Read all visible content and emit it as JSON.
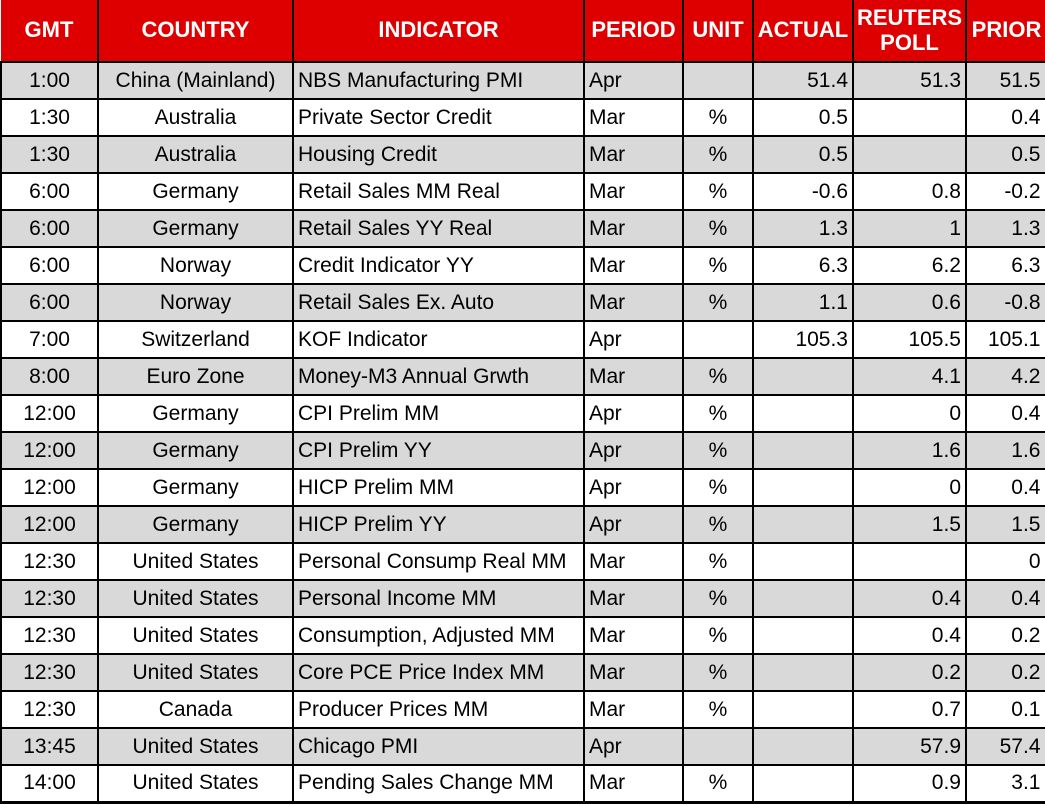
{
  "colors": {
    "header_bg": "#DE0000",
    "header_text": "#FFFFFF",
    "row_alt_bg": "#D9D9D9",
    "row_bg": "#FFFFFF",
    "border": "#000000",
    "body_text": "#000000"
  },
  "chart_data": {
    "type": "table",
    "columns": [
      {
        "key": "gmt",
        "label": "GMT"
      },
      {
        "key": "country",
        "label": "COUNTRY"
      },
      {
        "key": "indicator",
        "label": "INDICATOR"
      },
      {
        "key": "period",
        "label": "PERIOD"
      },
      {
        "key": "unit",
        "label": "UNIT"
      },
      {
        "key": "actual",
        "label": "ACTUAL"
      },
      {
        "key": "poll",
        "label": "REUTERS POLL"
      },
      {
        "key": "prior",
        "label": "PRIOR"
      }
    ],
    "rows": [
      {
        "gmt": "1:00",
        "country": "China (Mainland)",
        "indicator": "NBS Manufacturing PMI",
        "period": "Apr",
        "unit": "",
        "actual": "51.4",
        "poll": "51.3",
        "prior": "51.5"
      },
      {
        "gmt": "1:30",
        "country": "Australia",
        "indicator": "Private Sector Credit",
        "period": "Mar",
        "unit": "%",
        "actual": "0.5",
        "poll": "",
        "prior": "0.4"
      },
      {
        "gmt": "1:30",
        "country": "Australia",
        "indicator": "Housing Credit",
        "period": "Mar",
        "unit": "%",
        "actual": "0.5",
        "poll": "",
        "prior": "0.5"
      },
      {
        "gmt": "6:00",
        "country": "Germany",
        "indicator": "Retail Sales MM Real",
        "period": "Mar",
        "unit": "%",
        "actual": "-0.6",
        "poll": "0.8",
        "prior": "-0.2"
      },
      {
        "gmt": "6:00",
        "country": "Germany",
        "indicator": "Retail Sales YY Real",
        "period": "Mar",
        "unit": "%",
        "actual": "1.3",
        "poll": "1",
        "prior": "1.3"
      },
      {
        "gmt": "6:00",
        "country": "Norway",
        "indicator": "Credit Indicator YY",
        "period": "Mar",
        "unit": "%",
        "actual": "6.3",
        "poll": "6.2",
        "prior": "6.3"
      },
      {
        "gmt": "6:00",
        "country": "Norway",
        "indicator": "Retail Sales Ex. Auto",
        "period": "Mar",
        "unit": "%",
        "actual": "1.1",
        "poll": "0.6",
        "prior": "-0.8"
      },
      {
        "gmt": "7:00",
        "country": "Switzerland",
        "indicator": "KOF Indicator",
        "period": "Apr",
        "unit": "",
        "actual": "105.3",
        "poll": "105.5",
        "prior": "105.1"
      },
      {
        "gmt": "8:00",
        "country": "Euro Zone",
        "indicator": "Money-M3 Annual Grwth",
        "period": "Mar",
        "unit": "%",
        "actual": "",
        "poll": "4.1",
        "prior": "4.2"
      },
      {
        "gmt": "12:00",
        "country": "Germany",
        "indicator": "CPI Prelim MM",
        "period": "Apr",
        "unit": "%",
        "actual": "",
        "poll": "0",
        "prior": "0.4"
      },
      {
        "gmt": "12:00",
        "country": "Germany",
        "indicator": "CPI Prelim YY",
        "period": "Apr",
        "unit": "%",
        "actual": "",
        "poll": "1.6",
        "prior": "1.6"
      },
      {
        "gmt": "12:00",
        "country": "Germany",
        "indicator": "HICP Prelim MM",
        "period": "Apr",
        "unit": "%",
        "actual": "",
        "poll": "0",
        "prior": "0.4"
      },
      {
        "gmt": "12:00",
        "country": "Germany",
        "indicator": "HICP Prelim YY",
        "period": "Apr",
        "unit": "%",
        "actual": "",
        "poll": "1.5",
        "prior": "1.5"
      },
      {
        "gmt": "12:30",
        "country": "United States",
        "indicator": "Personal Consump Real MM",
        "period": "Mar",
        "unit": "%",
        "actual": "",
        "poll": "",
        "prior": "0"
      },
      {
        "gmt": "12:30",
        "country": "United States",
        "indicator": "Personal Income MM",
        "period": "Mar",
        "unit": "%",
        "actual": "",
        "poll": "0.4",
        "prior": "0.4"
      },
      {
        "gmt": "12:30",
        "country": "United States",
        "indicator": "Consumption, Adjusted MM",
        "period": "Mar",
        "unit": "%",
        "actual": "",
        "poll": "0.4",
        "prior": "0.2"
      },
      {
        "gmt": "12:30",
        "country": "United States",
        "indicator": "Core PCE Price Index MM",
        "period": "Mar",
        "unit": "%",
        "actual": "",
        "poll": "0.2",
        "prior": "0.2"
      },
      {
        "gmt": "12:30",
        "country": "Canada",
        "indicator": "Producer Prices MM",
        "period": "Mar",
        "unit": "%",
        "actual": "",
        "poll": "0.7",
        "prior": "0.1"
      },
      {
        "gmt": "13:45",
        "country": "United States",
        "indicator": "Chicago PMI",
        "period": "Apr",
        "unit": "",
        "actual": "",
        "poll": "57.9",
        "prior": "57.4"
      },
      {
        "gmt": "14:00",
        "country": "United States",
        "indicator": "Pending Sales Change MM",
        "period": "Mar",
        "unit": "%",
        "actual": "",
        "poll": "0.9",
        "prior": "3.1"
      }
    ]
  }
}
